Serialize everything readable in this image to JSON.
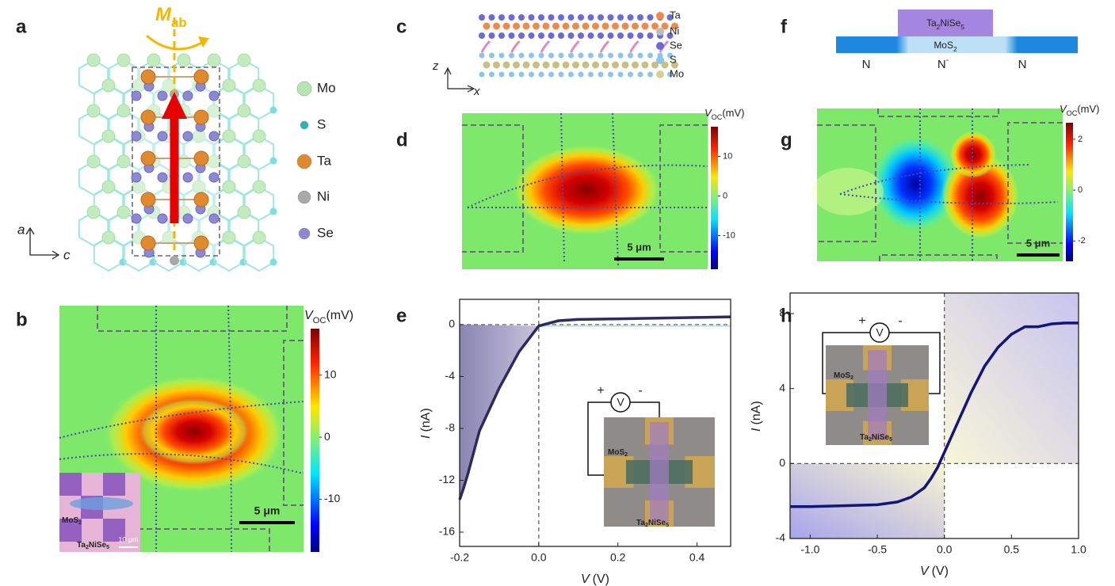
{
  "panels": {
    "a": {
      "label": "a",
      "moment": {
        "symbol": "M",
        "subscript": "ab"
      },
      "legend": [
        "Mo",
        "S",
        "Ta",
        "Ni",
        "Se"
      ],
      "axis_labels": [
        "a",
        "c"
      ]
    },
    "b": {
      "label": "b",
      "colorbar": {
        "symbol": "V",
        "subscript": "OC",
        "unit": "(mV)",
        "ticks": [
          10,
          0,
          -10
        ],
        "clim": [
          -18.5,
          17.5
        ]
      },
      "scale_bar": "5 μm",
      "inset": {
        "mos2": {
          "parts": [
            "MoS",
            "2"
          ]
        },
        "tns": {
          "parts": [
            "Ta",
            "2",
            "NiSe",
            "5"
          ]
        },
        "scale": "10 μm"
      }
    },
    "c": {
      "label": "c",
      "legend": [
        "Ta",
        "Ni",
        "Se",
        "S",
        "Mo"
      ],
      "axis_labels": [
        "z",
        "x"
      ]
    },
    "d": {
      "label": "d",
      "colorbar": {
        "symbol": "V",
        "subscript": "OC",
        "unit": "(mV)",
        "ticks": [
          10,
          0,
          -10
        ],
        "clim": [
          -18.5,
          17.5
        ]
      },
      "scale_bar": "5 μm"
    },
    "e": {
      "label": "e",
      "inset": {
        "circuit": [
          "+",
          "V",
          "-"
        ],
        "mos2": {
          "parts": [
            "MoS",
            "2"
          ]
        },
        "tns": {
          "parts": [
            "Ta",
            "2",
            "NiSe",
            "5"
          ]
        }
      }
    },
    "f": {
      "label": "f",
      "top": {
        "parts": [
          "Ta",
          "2",
          "NiSe",
          "5"
        ]
      },
      "bottom": {
        "parts": [
          "MoS",
          "2"
        ]
      },
      "regions": [
        "N",
        {
          "parts": [
            "N",
            "-"
          ]
        },
        "N"
      ]
    },
    "g": {
      "label": "g",
      "colorbar": {
        "symbol": "V",
        "subscript": "OC",
        "unit": "(mV)",
        "ticks": [
          2,
          0,
          -2
        ],
        "clim": [
          -2.8,
          2.65
        ]
      },
      "scale_bar": "5 μm"
    },
    "h": {
      "label": "h",
      "inset": {
        "circuit": [
          "+",
          "V",
          "-"
        ],
        "mos2": {
          "parts": [
            "MoS",
            "2"
          ]
        },
        "tns": {
          "parts": [
            "Ta",
            "2",
            "NiSe",
            "5"
          ]
        }
      }
    }
  },
  "chart_data": [
    {
      "type": "line",
      "x": [
        -0.2,
        -0.19,
        -0.18,
        -0.15,
        -0.1,
        -0.05,
        0,
        0.05,
        0.1,
        0.2,
        0.3,
        0.4,
        0.485
      ],
      "series": [
        {
          "color": "#2e2a5e",
          "values": [
            -13.5,
            -12.6,
            -11.6,
            -8.2,
            -4.9,
            -2.1,
            -0.1,
            0.3,
            0.4,
            0.45,
            0.5,
            0.55,
            0.6
          ]
        }
      ],
      "xlim": [
        -0.2,
        0.485
      ],
      "ylim": [
        -17.1,
        1.95
      ],
      "xticks": [
        -0.2,
        {
          "value": 0,
          "label": "0.0"
        },
        0.2,
        0.4
      ],
      "yticks": [
        -16,
        -12,
        -8,
        -4,
        0
      ],
      "xlabel": {
        "symbol": "V",
        "unit": "(V)"
      },
      "ylabel": {
        "symbol": "I",
        "unit": "(nA)"
      }
    },
    {
      "type": "line",
      "x": [
        -1.15,
        -1,
        -0.75,
        -0.5,
        -0.35,
        -0.25,
        -0.15,
        -0.1,
        -0.05,
        0,
        0.05,
        0.1,
        0.2,
        0.3,
        0.4,
        0.5,
        0.6,
        0.7,
        0.8,
        0.9,
        1.0
      ],
      "series": [
        {
          "color": "#14147a",
          "values": [
            -2.3,
            -2.3,
            -2.25,
            -2.2,
            -2.05,
            -1.8,
            -1.3,
            -0.8,
            -0.2,
            0.6,
            1.4,
            2.2,
            3.8,
            5.2,
            6.2,
            6.9,
            7.3,
            7.3,
            7.45,
            7.5,
            7.5
          ]
        }
      ],
      "xlim": [
        -1.15,
        1.0
      ],
      "ylim": [
        -4,
        9.1
      ],
      "xticks": [
        {
          "value": -1,
          "label": "-1.0"
        },
        -0.5,
        {
          "value": 0,
          "label": "0.0"
        },
        0.5,
        {
          "value": 1,
          "label": "1.0"
        }
      ],
      "yticks": [
        -4,
        0,
        4,
        8
      ],
      "xlabel": {
        "symbol": "V",
        "unit": "(V)"
      },
      "ylabel": {
        "symbol": "I",
        "unit": "(nA)"
      }
    }
  ]
}
